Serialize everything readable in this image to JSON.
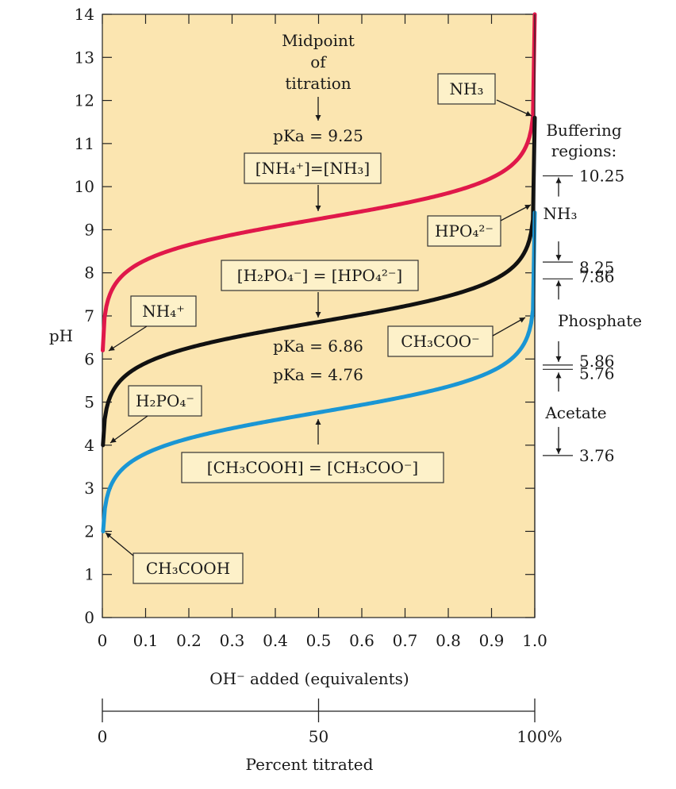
{
  "chart_data": {
    "type": "line",
    "xlabel": "OH⁻ added (equivalents)",
    "ylabel": "pH",
    "xlim": [
      0,
      1.0
    ],
    "ylim": [
      0,
      14
    ],
    "x_ticks": [
      "0",
      "0.1",
      "0.2",
      "0.3",
      "0.4",
      "0.5",
      "0.6",
      "0.7",
      "0.8",
      "0.9",
      "1.0"
    ],
    "y_ticks": [
      "0",
      "1",
      "2",
      "3",
      "4",
      "5",
      "6",
      "7",
      "8",
      "9",
      "10",
      "11",
      "12",
      "13",
      "14"
    ],
    "secondary_axis": {
      "label": "Percent titrated",
      "ticks": [
        "0",
        "50",
        "100%"
      ]
    },
    "series": [
      {
        "name": "NH₄⁺ / NH₃",
        "color": "#e0184a",
        "pKa": 9.25,
        "start_pH": 6.2,
        "end_pH": 14.0
      },
      {
        "name": "H₂PO₄⁻ / HPO₄²⁻",
        "color": "#111111",
        "pKa": 6.86,
        "start_pH": 4.0,
        "end_pH": 11.6
      },
      {
        "name": "CH₃COOH / CH₃COO⁻",
        "color": "#1a96d4",
        "pKa": 4.76,
        "start_pH": 2.0,
        "end_pH": 9.4
      }
    ],
    "annotations": {
      "midpoint": [
        "Midpoint",
        "of",
        "titration"
      ],
      "pka_nh3": "pKa = 9.25",
      "pka_phos": "pKa = 6.86",
      "pka_acet": "pKa = 4.76",
      "eq_nh3": "[NH₄⁺]=[NH₃]",
      "eq_phos": "[H₂PO₄⁻] = [HPO₄²⁻]",
      "eq_acet": "[CH₃COOH] = [CH₃COO⁻]",
      "label_nh3": "NH₃",
      "label_nh4": "NH₄⁺",
      "label_hpo4": "HPO₄²⁻",
      "label_h2po4": "H₂PO₄⁻",
      "label_ch3coo": "CH₃COO⁻",
      "label_ch3cooh": "CH₃COOH"
    },
    "buffering_regions": {
      "title": [
        "Buffering",
        "regions:"
      ],
      "regions": [
        {
          "name": "NH₃",
          "upper": "10.25",
          "lower": "8.25"
        },
        {
          "name": "Phosphate",
          "upper": "7.86",
          "lower": "5.86"
        },
        {
          "name": "Acetate",
          "upper": "5.76",
          "lower": "3.76"
        }
      ]
    }
  },
  "colors": {
    "plot_bg": "#fbe5b0"
  }
}
